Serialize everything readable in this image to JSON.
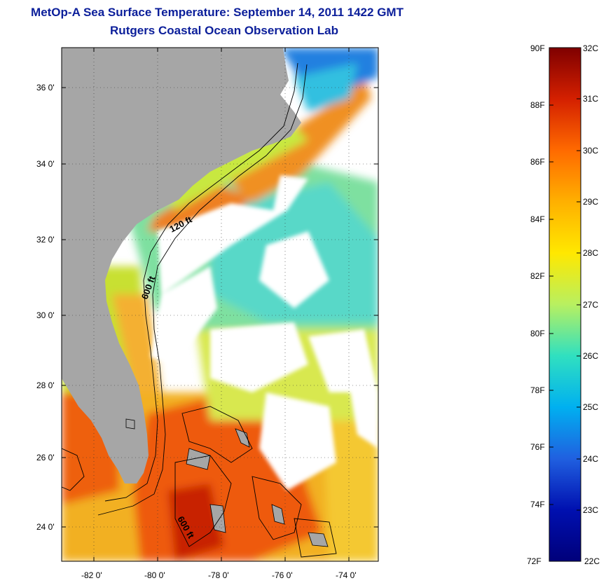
{
  "title": {
    "line1": "MetOp-A Sea Surface Temperature:  September 14, 2011 1422 GMT",
    "line2": "Rutgers Coastal Ocean Observation Lab"
  },
  "map": {
    "lat_range": [
      23,
      37.1
    ],
    "lon_range": [
      -82.9,
      -73
    ],
    "lat_ticks": [
      "24 0'",
      "26 0'",
      "28 0'",
      "30 0'",
      "32 0'",
      "34 0'",
      "36 0'"
    ],
    "lon_ticks": [
      "-82 0'",
      "-80 0'",
      "-78 0'",
      "-76 0'",
      "-74 0'"
    ],
    "contour_labels": [
      "120 ft",
      "600 ft",
      "600 ft"
    ],
    "colors": {
      "land": "#a6a6a6",
      "cloud": "#ffffff"
    }
  },
  "colorbar": {
    "fahrenheit_labels": [
      "90F",
      "88F",
      "86F",
      "84F",
      "82F",
      "80F",
      "78F",
      "76F",
      "74F",
      "72F"
    ],
    "celsius_labels": [
      "32C",
      "31C",
      "30C",
      "29C",
      "28C",
      "27C",
      "26C",
      "25C",
      "24C",
      "23C",
      "22C"
    ],
    "gradient": [
      "#7f0000",
      "#d42000",
      "#ff6a00",
      "#ffb000",
      "#ffe800",
      "#b8f060",
      "#30e0c0",
      "#00b0f0",
      "#2060e0",
      "#0010b0",
      "#00007a"
    ]
  }
}
